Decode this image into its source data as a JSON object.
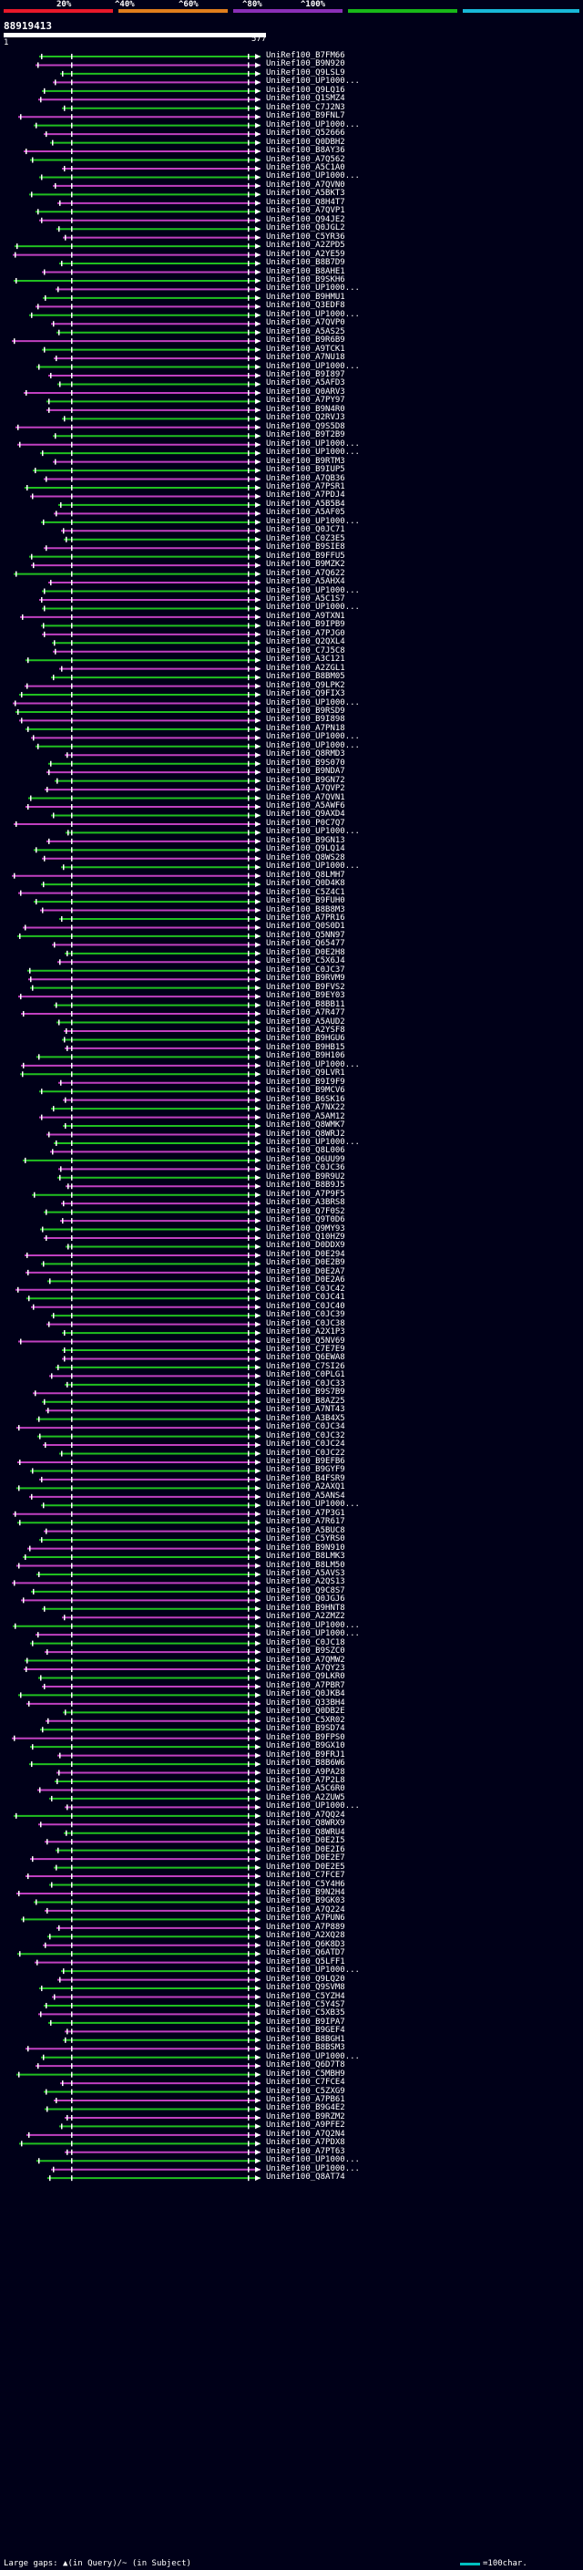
{
  "legend": {
    "labels": [
      "20%",
      "^40%",
      "^60%",
      "^80%",
      "^100%"
    ],
    "colors": [
      "#e8182a",
      "#e07e1c",
      "#8a2fb8",
      "#18b818",
      "#18b8d8"
    ]
  },
  "query": {
    "title": "88919413",
    "start": "1",
    "end": "577"
  },
  "footer": {
    "text": "Large gaps: ▲(in Query)/~ (in Subject)",
    "scale_text": "=100char."
  },
  "hits": [
    "UniRef100_B7FM66",
    "UniRef100_B9N920",
    "UniRef100_Q9LSL9",
    "UniRef100_UP1000...",
    "UniRef100_Q9LQ16",
    "UniRef100_Q1SMZ4",
    "UniRef100_C7J2N3",
    "UniRef100_B9FNL7",
    "UniRef100_UP1000...",
    "UniRef100_Q52666",
    "UniRef100_Q0DBH2",
    "UniRef100_B8AY36",
    "UniRef100_A7Q562",
    "UniRef100_A5C1A0",
    "UniRef100_UP1000...",
    "UniRef100_A7QVN0",
    "UniRef100_A5BKT3",
    "UniRef100_Q8H4T7",
    "UniRef100_A7QVP1",
    "UniRef100_Q94JE2",
    "UniRef100_Q0JGL2",
    "UniRef100_C5YR36",
    "UniRef100_A2ZPD5",
    "UniRef100_A2YE59",
    "UniRef100_B8B7D9",
    "UniRef100_B8AHE1",
    "UniRef100_B9SKH6",
    "UniRef100_UP1000...",
    "UniRef100_B9HMU1",
    "UniRef100_Q3EDF8",
    "UniRef100_UP1000...",
    "UniRef100_A7QVP0",
    "UniRef100_A5AS25",
    "UniRef100_B9R6B9",
    "UniRef100_A9TCK1",
    "UniRef100_A7NU18",
    "UniRef100_UP1000...",
    "UniRef100_B9I897",
    "UniRef100_A5AFD3",
    "UniRef100_Q0ARV3",
    "UniRef100_A7PY97",
    "UniRef100_B9N4R0",
    "UniRef100_Q2RVJ3",
    "UniRef100_Q9S5D8",
    "UniRef100_B9T2B9",
    "UniRef100_UP1000...",
    "UniRef100_UP1000...",
    "UniRef100_B9RTM3",
    "UniRef100_B9IUP5",
    "UniRef100_A7QB36",
    "UniRef100_A7PSR1",
    "UniRef100_A7PDJ4",
    "UniRef100_A5B5B4",
    "UniRef100_A5AF05",
    "UniRef100_UP1000...",
    "UniRef100_Q0JC71",
    "UniRef100_C0Z3E5",
    "UniRef100_B9SIE8",
    "UniRef100_B9FFU5",
    "UniRef100_B9MZK2",
    "UniRef100_A7Q622",
    "UniRef100_A5AHX4",
    "UniRef100_UP1000...",
    "UniRef100_A5C1S7",
    "UniRef100_UP1000...",
    "UniRef100_A9TXN1",
    "UniRef100_B9IPB9",
    "UniRef100_A7PJG0",
    "UniRef100_Q2QXL4",
    "UniRef100_C7J5C8",
    "UniRef100_A3C121",
    "UniRef100_A2ZGL1",
    "UniRef100_B8BM05",
    "UniRef100_Q9LPK2",
    "UniRef100_Q9FIX3",
    "UniRef100_UP1000...",
    "UniRef100_B9RSD9",
    "UniRef100_B9I898",
    "UniRef100_A7PN18",
    "UniRef100_UP1000...",
    "UniRef100_UP1000...",
    "UniRef100_Q8RMD3",
    "UniRef100_B9S070",
    "UniRef100_B9NDA7",
    "UniRef100_B9GN72",
    "UniRef100_A7QVP2",
    "UniRef100_A7QVN1",
    "UniRef100_A5AWF6",
    "UniRef100_Q9AXD4",
    "UniRef100_P0C7Q7",
    "UniRef100_UP1000...",
    "UniRef100_B9GN13",
    "UniRef100_Q9LQ14",
    "UniRef100_Q8WS28",
    "UniRef100_UP1000...",
    "UniRef100_Q8LMH7",
    "UniRef100_Q0D4K8",
    "UniRef100_C5Z4C1",
    "UniRef100_B9FUH0",
    "UniRef100_B8B8M3",
    "UniRef100_A7PR16",
    "UniRef100_Q0S0D1",
    "UniRef100_Q5NN97",
    "UniRef100_Q65477",
    "UniRef100_D0E2H8",
    "UniRef100_C5X6J4",
    "UniRef100_C0JC37",
    "UniRef100_B9RVM9",
    "UniRef100_B9FVS2",
    "UniRef100_B9EY03",
    "UniRef100_B8BB11",
    "UniRef100_A7R477",
    "UniRef100_A5AUD2",
    "UniRef100_A2YSF8",
    "UniRef100_B9HGU6",
    "UniRef100_B9HB15",
    "UniRef100_B9H106",
    "UniRef100_UP1000...",
    "UniRef100_Q9LVR1",
    "UniRef100_B9I9F9",
    "UniRef100_B9MCV6",
    "UniRef100_B6SK16",
    "UniRef100_A7NX22",
    "UniRef100_A5AM12",
    "UniRef100_Q8WMK7",
    "UniRef100_Q8WRJ2",
    "UniRef100_UP1000...",
    "UniRef100_Q8L006",
    "UniRef100_Q6UU99",
    "UniRef100_C0JC36",
    "UniRef100_B9R9U2",
    "UniRef100_B8B9J5",
    "UniRef100_A7P9F5",
    "UniRef100_A3BRS8",
    "UniRef100_Q7F0S2",
    "UniRef100_Q9T0D6",
    "UniRef100_Q9MY93",
    "UniRef100_Q10HZ9",
    "UniRef100_D0DDX9",
    "UniRef100_D0E294",
    "UniRef100_D0E2B9",
    "UniRef100_D0E2A7",
    "UniRef100_D0E2A6",
    "UniRef100_C0JC42",
    "UniRef100_C0JC41",
    "UniRef100_C0JC40",
    "UniRef100_C0JC39",
    "UniRef100_C0JC38",
    "UniRef100_A2X1P3",
    "UniRef100_Q5NV69",
    "UniRef100_C7E7E9",
    "UniRef100_Q6EWA8",
    "UniRef100_C7SI26",
    "UniRef100_C0PLG1",
    "UniRef100_C0JC33",
    "UniRef100_B9S7B9",
    "UniRef100_B8AZ25",
    "UniRef100_A7NT43",
    "UniRef100_A3B4X5",
    "UniRef100_C0JC34",
    "UniRef100_C0JC32",
    "UniRef100_C0JC24",
    "UniRef100_C0JC22",
    "UniRef100_B9EFB6",
    "UniRef100_B9GYF9",
    "UniRef100_B4FSR9",
    "UniRef100_A2AXQ1",
    "UniRef100_A5ANS4",
    "UniRef100_UP1000...",
    "UniRef100_A7P3G1",
    "UniRef100_A7R617",
    "UniRef100_A5BUC8",
    "UniRef100_C5YRS0",
    "UniRef100_B9N910",
    "UniRef100_B8LMK3",
    "UniRef100_B8LM50",
    "UniRef100_A5AVS3",
    "UniRef100_A2QS13",
    "UniRef100_Q9C8S7",
    "UniRef100_Q0JGJ6",
    "UniRef100_B9HNT8",
    "UniRef100_A2ZMZ2",
    "UniRef100_UP1000...",
    "UniRef100_UP1000...",
    "UniRef100_C0JC18",
    "UniRef100_B9SZC0",
    "UniRef100_A7QMW2",
    "UniRef100_A7QY23",
    "UniRef100_Q9LKR0",
    "UniRef100_A7PBR7",
    "UniRef100_Q0JKB4",
    "UniRef100_Q33BH4",
    "UniRef100_Q0DB2E",
    "UniRef100_C5XR02",
    "UniRef100_B9SD74",
    "UniRef100_B9FPS0",
    "UniRef100_B9GX10",
    "UniRef100_B9FRJ1",
    "UniRef100_B8B6W6",
    "UniRef100_A9PA28",
    "UniRef100_A7P2L8",
    "UniRef100_A5C6R0",
    "UniRef100_A2ZUW5",
    "UniRef100_UP1000...",
    "UniRef100_A7QQ24",
    "UniRef100_Q8WRX9",
    "UniRef100_Q8WRU4",
    "UniRef100_D0E2I5",
    "UniRef100_D0E2I6",
    "UniRef100_D0E2E7",
    "UniRef100_D0E2E5",
    "UniRef100_C7FCE7",
    "UniRef100_C5Y4H6",
    "UniRef100_B9N2H4",
    "UniRef100_B9GK03",
    "UniRef100_A7Q224",
    "UniRef100_A7PUN6",
    "UniRef100_A7P889",
    "UniRef100_A2XQ28",
    "UniRef100_Q6K8D3",
    "UniRef100_Q6ATD7",
    "UniRef100_Q5LFF1",
    "UniRef100_UP1000...",
    "UniRef100_Q9LQ20",
    "UniRef100_Q9SVM8",
    "UniRef100_C5YZH4",
    "UniRef100_C5Y4S7",
    "UniRef100_C5XB35",
    "UniRef100_B9IPA7",
    "UniRef100_B9GEF4",
    "UniRef100_B8BGH1",
    "UniRef100_B8BSM3",
    "UniRef100_UP1000...",
    "UniRef100_Q6D7T8",
    "UniRef100_C5MBH9",
    "UniRef100_C7FCE4",
    "UniRef100_C5ZXG9",
    "UniRef100_A7PB61",
    "UniRef100_B9G4E2",
    "UniRef100_B9RZM2",
    "UniRef100_A9PFE2",
    "UniRef100_A7Q2N4",
    "UniRef100_A7PDX8",
    "UniRef100_A7PT63",
    "UniRef100_UP1000...",
    "UniRef100_UP1000...",
    "UniRef100_Q8AT74"
  ]
}
